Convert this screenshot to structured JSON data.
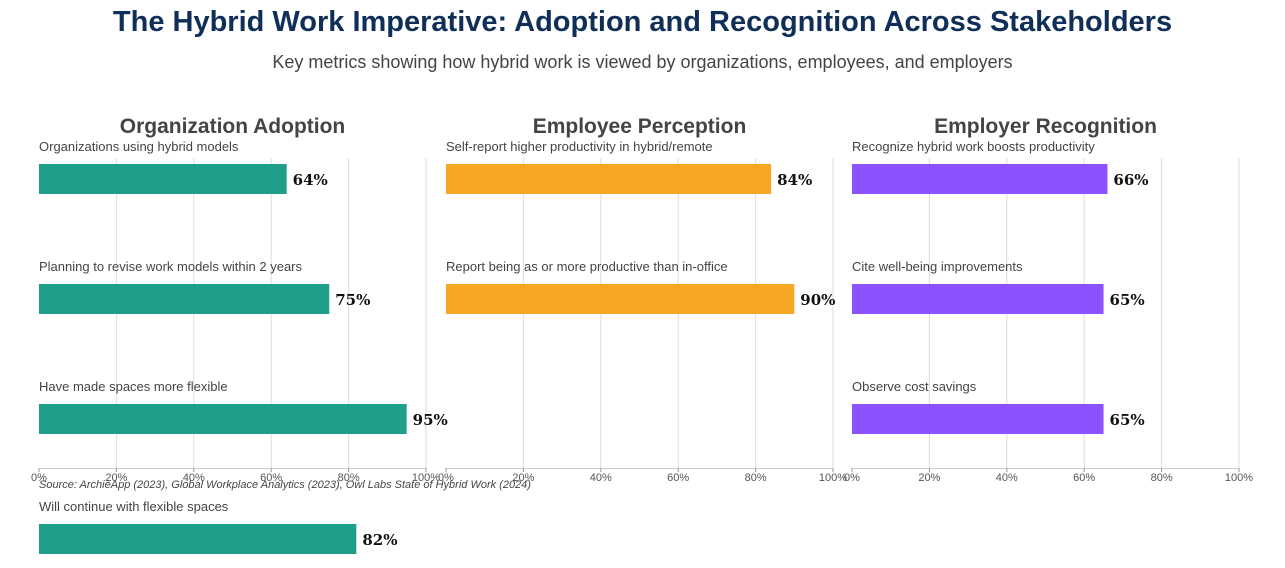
{
  "title": "The Hybrid Work Imperative: Adoption and Recognition Across Stakeholders",
  "subtitle": "Key metrics showing how hybrid work is viewed by organizations, employees, and employers",
  "source": "Source: ArchieApp (2023), Global Workplace Analytics (2023), Owl Labs State of Hybrid Work (2024)",
  "chart_data": [
    {
      "type": "bar",
      "orientation": "horizontal",
      "title": "Organization Adoption",
      "color": "#1f9e89",
      "categories": [
        "Organizations using hybrid models",
        "Planning to revise work models within 2 years",
        "Have made spaces more flexible",
        "Will continue with flexible spaces"
      ],
      "values": [
        64,
        75,
        95,
        82
      ],
      "value_labels": [
        "64%",
        "75%",
        "95%",
        "82%"
      ],
      "xlim": [
        0,
        100
      ],
      "xticks": [
        "0%",
        "20%",
        "40%",
        "60%",
        "80%",
        "100%"
      ],
      "grid": true
    },
    {
      "type": "bar",
      "orientation": "horizontal",
      "title": "Employee Perception",
      "color": "#f5a623",
      "categories": [
        "Self-report higher productivity in hybrid/remote",
        "Report being as or more productive than in-office"
      ],
      "values": [
        84,
        90
      ],
      "value_labels": [
        "84%",
        "90%"
      ],
      "xlim": [
        0,
        100
      ],
      "xticks": [
        "0%",
        "20%",
        "40%",
        "60%",
        "80%",
        "100%"
      ],
      "grid": true
    },
    {
      "type": "bar",
      "orientation": "horizontal",
      "title": "Employer Recognition",
      "color": "#8c52ff",
      "categories": [
        "Recognize hybrid work boosts productivity",
        "Cite well-being improvements",
        "Observe cost savings"
      ],
      "values": [
        66,
        65,
        65
      ],
      "value_labels": [
        "66%",
        "65%",
        "65%"
      ],
      "xlim": [
        0,
        100
      ],
      "xticks": [
        "0%",
        "20%",
        "40%",
        "60%",
        "80%",
        "100%"
      ],
      "grid": true
    }
  ]
}
